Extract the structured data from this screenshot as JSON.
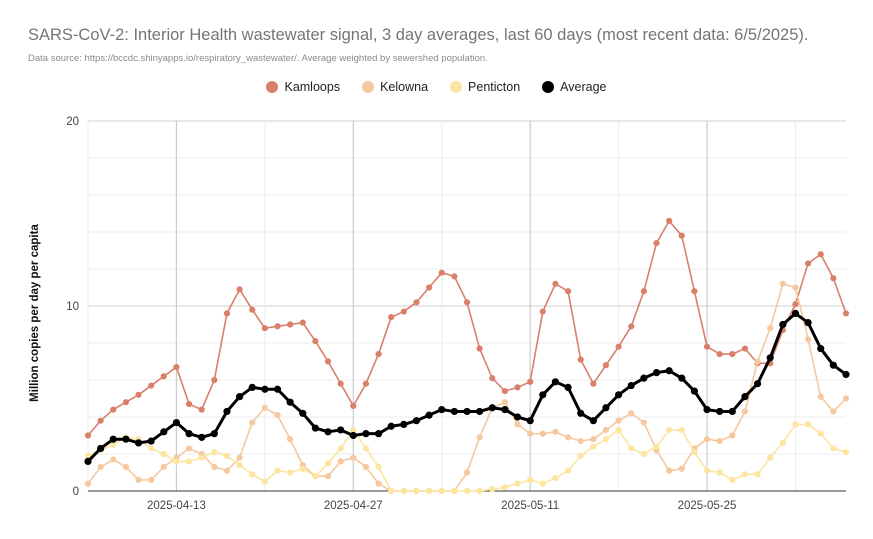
{
  "title": "SARS-CoV-2: Interior Health wastewater signal, 3 day averages, last 60 days (most recent data: 6/5/2025).",
  "subtitle": "Data source: https://bccdc.shinyapps.io/respiratory_wastewater/. Average weighted by sewershed population.",
  "chart_data": {
    "type": "line",
    "ylabel": "Million copies per day per capita",
    "xlabel": "",
    "ylim": [
      0,
      20
    ],
    "y_ticks": [
      "0",
      "10",
      "20"
    ],
    "x_range": [
      "2025-04-06",
      "2025-06-05"
    ],
    "x_tick_labels": [
      "2025-04-13",
      "2025-04-27",
      "2025-05-11",
      "2025-05-25"
    ],
    "grid": true,
    "legend_position": "top",
    "x": [
      "2025-04-06",
      "2025-04-07",
      "2025-04-08",
      "2025-04-09",
      "2025-04-10",
      "2025-04-11",
      "2025-04-12",
      "2025-04-13",
      "2025-04-14",
      "2025-04-15",
      "2025-04-16",
      "2025-04-17",
      "2025-04-18",
      "2025-04-19",
      "2025-04-20",
      "2025-04-21",
      "2025-04-22",
      "2025-04-23",
      "2025-04-24",
      "2025-04-25",
      "2025-04-26",
      "2025-04-27",
      "2025-04-28",
      "2025-04-29",
      "2025-04-30",
      "2025-05-01",
      "2025-05-02",
      "2025-05-03",
      "2025-05-04",
      "2025-05-05",
      "2025-05-06",
      "2025-05-07",
      "2025-05-08",
      "2025-05-09",
      "2025-05-10",
      "2025-05-11",
      "2025-05-12",
      "2025-05-13",
      "2025-05-14",
      "2025-05-15",
      "2025-05-16",
      "2025-05-17",
      "2025-05-18",
      "2025-05-19",
      "2025-05-20",
      "2025-05-21",
      "2025-05-22",
      "2025-05-23",
      "2025-05-24",
      "2025-05-25",
      "2025-05-26",
      "2025-05-27",
      "2025-05-28",
      "2025-05-29",
      "2025-05-30",
      "2025-05-31",
      "2025-06-01",
      "2025-06-02",
      "2025-06-03",
      "2025-06-04",
      "2025-06-05"
    ],
    "series": [
      {
        "name": "Kamloops",
        "color": "#d9806b",
        "values": [
          3.0,
          3.8,
          4.4,
          4.8,
          5.2,
          5.7,
          6.2,
          6.7,
          4.7,
          4.4,
          6.0,
          9.6,
          10.9,
          9.8,
          8.8,
          8.9,
          9.0,
          9.1,
          8.1,
          7.0,
          5.8,
          4.6,
          5.8,
          7.4,
          9.4,
          9.7,
          10.2,
          11.0,
          11.8,
          11.6,
          10.2,
          7.7,
          6.1,
          5.4,
          5.6,
          5.9,
          9.7,
          11.2,
          10.8,
          7.1,
          5.8,
          6.8,
          7.8,
          8.9,
          10.8,
          13.4,
          14.6,
          13.8,
          10.8,
          7.8,
          7.4,
          7.4,
          7.7,
          6.9,
          6.9,
          8.7,
          10.1,
          12.3,
          12.8,
          11.5,
          9.6
        ]
      },
      {
        "name": "Kelowna",
        "color": "#f6c89f",
        "values": [
          0.4,
          1.3,
          1.7,
          1.3,
          0.6,
          0.6,
          1.3,
          1.8,
          2.3,
          2.0,
          1.3,
          1.1,
          1.8,
          3.7,
          4.5,
          4.1,
          2.8,
          1.4,
          0.8,
          0.8,
          1.6,
          1.8,
          1.3,
          0.4,
          0.0,
          0.0,
          0.0,
          0.0,
          0.0,
          0.0,
          1.0,
          2.9,
          4.5,
          4.8,
          3.6,
          3.1,
          3.1,
          3.2,
          2.9,
          2.7,
          2.8,
          3.3,
          3.8,
          4.2,
          3.7,
          2.2,
          1.1,
          1.2,
          2.3,
          2.8,
          2.7,
          3.0,
          4.3,
          7.0,
          8.8,
          11.2,
          11.0,
          8.2,
          5.1,
          4.3,
          5.0
        ]
      },
      {
        "name": "Penticton",
        "color": "#fce5a0",
        "values": [
          1.9,
          2.2,
          2.5,
          2.9,
          2.8,
          2.3,
          2.0,
          1.6,
          1.6,
          1.8,
          2.1,
          1.9,
          1.4,
          0.9,
          0.5,
          1.1,
          1.0,
          1.2,
          0.8,
          1.5,
          2.3,
          3.3,
          2.3,
          1.3,
          0.0,
          0.0,
          0.0,
          0.0,
          0.0,
          0.0,
          0.0,
          0.0,
          0.1,
          0.2,
          0.4,
          0.6,
          0.4,
          0.7,
          1.1,
          1.9,
          2.4,
          2.8,
          3.3,
          2.3,
          2.0,
          2.4,
          3.3,
          3.3,
          2.1,
          1.1,
          1.0,
          0.6,
          0.9,
          0.9,
          1.8,
          2.6,
          3.6,
          3.6,
          3.1,
          2.3,
          2.1
        ]
      },
      {
        "name": "Average",
        "color": "#000000",
        "values": [
          1.6,
          2.3,
          2.8,
          2.8,
          2.6,
          2.7,
          3.2,
          3.7,
          3.1,
          2.9,
          3.1,
          4.3,
          5.1,
          5.6,
          5.5,
          5.5,
          4.8,
          4.2,
          3.4,
          3.2,
          3.3,
          3.0,
          3.1,
          3.1,
          3.5,
          3.6,
          3.8,
          4.1,
          4.4,
          4.3,
          4.3,
          4.3,
          4.5,
          4.4,
          4.0,
          3.8,
          5.2,
          5.9,
          5.6,
          4.2,
          3.8,
          4.5,
          5.2,
          5.7,
          6.1,
          6.4,
          6.5,
          6.1,
          5.4,
          4.4,
          4.3,
          4.3,
          5.1,
          5.8,
          7.2,
          9.0,
          9.6,
          9.1,
          7.7,
          6.8,
          6.3
        ]
      }
    ]
  }
}
